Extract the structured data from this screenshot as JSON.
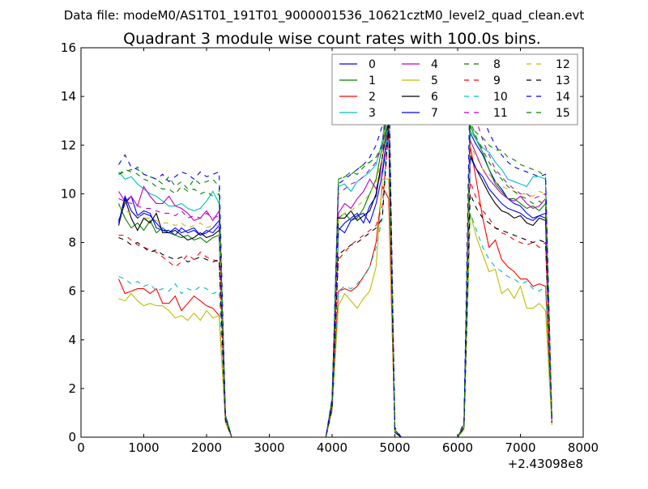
{
  "chart_data": {
    "type": "line",
    "suptitle": "Data file: modeM0/AS1T01_191T01_9000001536_10621cztM0_level2_quad_clean.evt",
    "title": "Quadrant 3 module wise count rates with 100.0s bins.",
    "xlabel": "",
    "ylabel": "",
    "xlim": [
      0,
      8000
    ],
    "ylim": [
      0,
      16
    ],
    "x_offset_label": "+2.43098e8",
    "xticks": [
      0,
      1000,
      2000,
      3000,
      4000,
      5000,
      6000,
      7000,
      8000
    ],
    "xtick_labels": [
      "0",
      "1000",
      "2000",
      "3000",
      "4000",
      "5000",
      "6000",
      "7000",
      "8000"
    ],
    "yticks": [
      0,
      2,
      4,
      6,
      8,
      10,
      12,
      14,
      16
    ],
    "ytick_labels": [
      "0",
      "2",
      "4",
      "6",
      "8",
      "10",
      "12",
      "14",
      "16"
    ],
    "legend_placement": "top-right",
    "x_start": 600,
    "x_step": 100,
    "series": [
      {
        "name": "0",
        "color": "#0000ff",
        "dash": false,
        "values": [
          8.9,
          9.6,
          9.9,
          9.1,
          9.3,
          9.2,
          8.6,
          8.5,
          8.5,
          8.3,
          8.6,
          8.4,
          8.5,
          8.3,
          8.4,
          8.6,
          8.9,
          0.9,
          0,
          0,
          0,
          0,
          0,
          0,
          0,
          0,
          0,
          0,
          0,
          0,
          0,
          0,
          0,
          0,
          1.5,
          8.5,
          8.8,
          9.0,
          9.2,
          8.8,
          9.5,
          9.9,
          11.5,
          14.5,
          0.3,
          0,
          0,
          0,
          0,
          0,
          0,
          0,
          0,
          0,
          0,
          0.5,
          12.5,
          12.0,
          11.6,
          11.0,
          10.5,
          10.2,
          9.8,
          9.6,
          9.5,
          9.2,
          9.0,
          9.1,
          9.2,
          0.8
        ]
      },
      {
        "name": "1",
        "color": "#008000",
        "dash": false,
        "values": [
          9.6,
          9.0,
          8.6,
          8.8,
          8.5,
          8.9,
          8.4,
          8.6,
          8.4,
          8.3,
          8.2,
          8.3,
          8.1,
          8.2,
          8.0,
          8.2,
          8.3,
          0.8,
          0,
          0,
          0,
          0,
          0,
          0,
          0,
          0,
          0,
          0,
          0,
          0,
          0,
          0,
          0,
          0,
          1.4,
          9.0,
          9.2,
          8.9,
          9.0,
          9.4,
          10.0,
          10.6,
          12.0,
          13.0,
          0.2,
          0,
          0,
          0,
          0,
          0,
          0,
          0,
          0,
          0,
          0,
          0.5,
          12.8,
          12.2,
          11.7,
          11.0,
          10.4,
          10.1,
          9.8,
          9.8,
          9.6,
          9.4,
          9.5,
          9.3,
          9.6,
          0.7
        ]
      },
      {
        "name": "2",
        "color": "#ff0000",
        "dash": false,
        "values": [
          6.5,
          5.9,
          6.0,
          6.1,
          6.1,
          5.9,
          6.1,
          5.5,
          5.5,
          5.8,
          5.2,
          5.5,
          5.8,
          5.6,
          5.4,
          5.3,
          5.0,
          0.7,
          0,
          0,
          0,
          0,
          0,
          0,
          0,
          0,
          0,
          0,
          0,
          0,
          0,
          0,
          0,
          0,
          1.2,
          6.0,
          6.1,
          6.0,
          6.2,
          6.6,
          7.0,
          8.0,
          10.3,
          9.8,
          0.3,
          0,
          0,
          0,
          0,
          0,
          0,
          0,
          0,
          0,
          0,
          0.4,
          12.0,
          10.5,
          9.0,
          7.8,
          8.1,
          7.3,
          7.0,
          6.8,
          6.5,
          6.5,
          6.2,
          6.3,
          6.2,
          0.8
        ]
      },
      {
        "name": "3",
        "color": "#00bfbf",
        "dash": false,
        "values": [
          10.9,
          10.6,
          10.7,
          10.4,
          10.2,
          10.0,
          9.9,
          9.7,
          9.5,
          9.5,
          9.6,
          9.4,
          9.3,
          9.4,
          9.7,
          10.1,
          9.6,
          0.9,
          0,
          0,
          0,
          0,
          0,
          0,
          0,
          0,
          0,
          0,
          0,
          0,
          0,
          0,
          0,
          0,
          1.6,
          10.3,
          10.4,
          10.1,
          10.5,
          10.7,
          10.9,
          11.2,
          12.2,
          14.0,
          0.3,
          0,
          0,
          0,
          0,
          0,
          0,
          0,
          0,
          0,
          0,
          0.5,
          12.6,
          12.2,
          11.9,
          11.7,
          11.3,
          11.0,
          10.6,
          10.5,
          10.4,
          10.3,
          10.7,
          10.7,
          10.6,
          0.6
        ]
      },
      {
        "name": "4",
        "color": "#bf00bf",
        "dash": false,
        "values": [
          10.1,
          9.7,
          9.9,
          9.5,
          10.3,
          9.9,
          9.6,
          9.6,
          9.9,
          9.5,
          9.4,
          9.2,
          8.9,
          9.0,
          9.3,
          8.9,
          9.3,
          0.8,
          0,
          0,
          0,
          0,
          0,
          0,
          0,
          0,
          0,
          0,
          0,
          0,
          0,
          0,
          0,
          0,
          1.5,
          9.2,
          9.6,
          9.4,
          9.8,
          10.1,
          10.6,
          10.2,
          11.0,
          12.8,
          0.2,
          0,
          0,
          0,
          0,
          0,
          0,
          0,
          0,
          0,
          0,
          0.4,
          12.2,
          11.6,
          11.0,
          10.6,
          10.3,
          10.0,
          9.8,
          9.7,
          9.9,
          9.6,
          9.4,
          9.5,
          9.8,
          0.7
        ]
      },
      {
        "name": "5",
        "color": "#bfbf00",
        "dash": false,
        "values": [
          5.7,
          5.6,
          5.9,
          5.6,
          5.4,
          5.5,
          5.4,
          5.4,
          5.2,
          4.9,
          5.0,
          4.8,
          5.1,
          4.8,
          5.2,
          4.9,
          5.0,
          0.6,
          0,
          0,
          0,
          0,
          0,
          0,
          0,
          0,
          0,
          0,
          0,
          0,
          0,
          0,
          0,
          0,
          1.1,
          5.4,
          5.9,
          5.6,
          5.3,
          5.7,
          6.0,
          7.0,
          10.6,
          10.6,
          0.2,
          0,
          0,
          0,
          0,
          0,
          0,
          0,
          0,
          0,
          0,
          0.3,
          9.2,
          8.2,
          7.5,
          6.8,
          6.9,
          5.9,
          6.1,
          5.7,
          6.2,
          5.3,
          5.3,
          5.5,
          5.2,
          0.5
        ]
      },
      {
        "name": "6",
        "color": "#000000",
        "dash": false,
        "values": [
          8.7,
          9.8,
          9.0,
          8.5,
          9.0,
          8.8,
          9.2,
          8.4,
          8.4,
          8.5,
          8.3,
          8.1,
          8.2,
          8.4,
          8.2,
          8.3,
          8.5,
          0.8,
          0,
          0,
          0,
          0,
          0,
          0,
          0,
          0,
          0,
          0,
          0,
          0,
          0,
          0,
          0,
          0,
          1.4,
          9.0,
          9.0,
          9.3,
          8.9,
          9.1,
          9.3,
          10.0,
          11.5,
          13.0,
          0.2,
          0,
          0,
          0,
          0,
          0,
          0,
          0,
          0,
          0,
          0,
          0.5,
          11.6,
          11.0,
          10.5,
          10.0,
          9.6,
          9.3,
          9.2,
          9.0,
          9.1,
          8.8,
          8.7,
          9.0,
          8.9,
          0.8
        ]
      },
      {
        "name": "7",
        "color": "#0000ff",
        "dash": false,
        "values": [
          8.8,
          9.9,
          9.3,
          9.0,
          9.2,
          9.1,
          8.8,
          8.5,
          8.4,
          8.6,
          8.4,
          8.5,
          8.6,
          8.3,
          8.5,
          8.4,
          8.7,
          0.8,
          0,
          0,
          0,
          0,
          0,
          0,
          0,
          0,
          0,
          0,
          0,
          0,
          0,
          0,
          0,
          0,
          1.3,
          8.6,
          8.4,
          8.9,
          9.1,
          9.2,
          8.8,
          9.6,
          10.8,
          12.6,
          0.2,
          0,
          0,
          0,
          0,
          0,
          0,
          0,
          0,
          0,
          0,
          0.4,
          11.5,
          11.0,
          10.7,
          10.2,
          9.9,
          9.6,
          9.4,
          9.3,
          9.2,
          9.0,
          8.9,
          9.1,
          9.0,
          0.7
        ]
      },
      {
        "name": "8",
        "color": "#008000",
        "dash": true,
        "values": [
          10.8,
          11.0,
          10.9,
          11.1,
          10.8,
          10.7,
          10.6,
          10.4,
          10.7,
          10.3,
          10.5,
          10.2,
          10.6,
          10.4,
          10.5,
          10.6,
          10.3,
          0.9,
          0,
          0,
          0,
          0,
          0,
          0,
          0,
          0,
          0,
          0,
          0,
          0,
          0,
          0,
          0,
          0,
          1.5,
          10.6,
          10.7,
          10.9,
          10.8,
          11.1,
          11.3,
          11.5,
          12.0,
          13.5,
          0.3,
          0,
          0,
          0,
          0,
          0,
          0,
          0,
          0,
          0,
          0,
          0.5,
          12.8,
          12.5,
          12.3,
          12.0,
          11.8,
          11.8,
          11.5,
          11.4,
          11.2,
          11.1,
          11.0,
          10.9,
          10.7,
          0.7
        ]
      },
      {
        "name": "9",
        "color": "#ff0000",
        "dash": true,
        "values": [
          8.3,
          8.3,
          8.1,
          7.9,
          7.8,
          7.7,
          7.6,
          7.4,
          7.2,
          7.0,
          7.2,
          7.5,
          7.3,
          7.6,
          7.4,
          7.3,
          7.2,
          0.7,
          0,
          0,
          0,
          0,
          0,
          0,
          0,
          0,
          0,
          0,
          0,
          0,
          0,
          0,
          0,
          0,
          1.2,
          7.3,
          7.6,
          7.9,
          8.1,
          8.3,
          8.5,
          8.7,
          9.5,
          12.5,
          0.2,
          0,
          0,
          0,
          0,
          0,
          0,
          0,
          0,
          0,
          0,
          0.4,
          10.5,
          9.8,
          9.3,
          9.0,
          8.6,
          8.4,
          8.3,
          8.1,
          8.0,
          7.9,
          8.0,
          7.8,
          8.0,
          0.6
        ]
      },
      {
        "name": "10",
        "color": "#00bfbf",
        "dash": true,
        "values": [
          6.6,
          6.5,
          6.3,
          6.4,
          6.2,
          6.3,
          6.0,
          6.1,
          6.0,
          6.3,
          5.9,
          6.1,
          6.0,
          6.2,
          6.1,
          5.9,
          6.0,
          0.7,
          0,
          0,
          0,
          0,
          0,
          0,
          0,
          0,
          0,
          0,
          0,
          0,
          0,
          0,
          0,
          0,
          1.1,
          6.0,
          6.2,
          6.1,
          6.3,
          6.6,
          7.0,
          7.8,
          9.0,
          13.8,
          0.2,
          0,
          0,
          0,
          0,
          0,
          0,
          0,
          0,
          0,
          0,
          0.4,
          9.2,
          8.5,
          7.8,
          7.3,
          7.0,
          6.8,
          6.6,
          6.5,
          6.3,
          6.4,
          6.1,
          6.0,
          6.2,
          0.6
        ]
      },
      {
        "name": "11",
        "color": "#bf00bf",
        "dash": true,
        "values": [
          9.8,
          9.7,
          9.6,
          9.5,
          9.4,
          9.4,
          9.3,
          9.2,
          9.2,
          9.1,
          9.3,
          9.0,
          9.1,
          9.0,
          9.2,
          9.0,
          9.1,
          0.8,
          0,
          0,
          0,
          0,
          0,
          0,
          0,
          0,
          0,
          0,
          0,
          0,
          0,
          0,
          0,
          0,
          1.5,
          10.0,
          10.2,
          10.4,
          10.5,
          10.7,
          11.0,
          11.3,
          12.0,
          15.0,
          0.3,
          0,
          0,
          0,
          0,
          0,
          0,
          0,
          0,
          0,
          0,
          0.5,
          14.0,
          13.0,
          12.2,
          11.6,
          11.0,
          10.7,
          10.4,
          10.2,
          10.0,
          10.0,
          9.8,
          9.9,
          10.0,
          0.7
        ]
      },
      {
        "name": "12",
        "color": "#bfbf00",
        "dash": true,
        "values": [
          9.5,
          9.3,
          9.2,
          9.1,
          9.0,
          9.0,
          8.9,
          8.8,
          8.8,
          8.7,
          8.8,
          8.6,
          8.7,
          8.8,
          8.6,
          8.7,
          8.7,
          0.8,
          0,
          0,
          0,
          0,
          0,
          0,
          0,
          0,
          0,
          0,
          0,
          0,
          0,
          0,
          0,
          0,
          1.4,
          9.0,
          9.2,
          9.3,
          9.5,
          9.7,
          10.0,
          10.5,
          11.5,
          14.2,
          0.2,
          0,
          0,
          0,
          0,
          0,
          0,
          0,
          0,
          0,
          0,
          0.5,
          12.0,
          11.5,
          11.0,
          10.8,
          10.5,
          10.3,
          10.2,
          10.1,
          10.0,
          10.0,
          9.9,
          10.1,
          10.0,
          0.6
        ]
      },
      {
        "name": "13",
        "color": "#000000",
        "dash": true,
        "values": [
          8.2,
          8.1,
          7.9,
          8.0,
          7.8,
          7.6,
          7.7,
          7.5,
          7.4,
          7.3,
          7.4,
          7.2,
          7.3,
          7.4,
          7.3,
          7.2,
          7.3,
          0.7,
          0,
          0,
          0,
          0,
          0,
          0,
          0,
          0,
          0,
          0,
          0,
          0,
          0,
          0,
          0,
          0,
          1.2,
          7.5,
          7.7,
          7.9,
          8.0,
          8.2,
          8.4,
          8.6,
          9.0,
          12.8,
          0.2,
          0,
          0,
          0,
          0,
          0,
          0,
          0,
          0,
          0,
          0,
          0.4,
          10.0,
          9.4,
          9.0,
          8.8,
          8.6,
          8.5,
          8.4,
          8.3,
          8.2,
          8.1,
          8.0,
          8.1,
          8.0,
          0.6
        ]
      },
      {
        "name": "14",
        "color": "#0000ff",
        "dash": true,
        "values": [
          11.2,
          11.6,
          11.1,
          11.0,
          10.8,
          10.7,
          10.6,
          10.8,
          10.5,
          10.7,
          10.9,
          10.8,
          10.6,
          10.9,
          10.7,
          10.8,
          10.9,
          0.9,
          0,
          0,
          0,
          0,
          0,
          0,
          0,
          0,
          0,
          0,
          0,
          0,
          0,
          0,
          0,
          0,
          1.6,
          10.4,
          10.6,
          10.8,
          11.0,
          11.2,
          11.5,
          12.0,
          12.8,
          15.5,
          0.4,
          0,
          0,
          0,
          0,
          0,
          0,
          0,
          0,
          0,
          0,
          0.6,
          15.0,
          14.0,
          13.2,
          12.5,
          12.0,
          11.6,
          11.3,
          11.1,
          11.0,
          10.9,
          10.8,
          10.7,
          10.8,
          0.8
        ]
      },
      {
        "name": "15",
        "color": "#008000",
        "dash": true,
        "values": [
          10.8,
          10.9,
          11.0,
          10.8,
          10.6,
          10.5,
          10.3,
          10.2,
          10.2,
          10.0,
          10.3,
          10.1,
          10.2,
          10.0,
          10.1,
          9.9,
          10.0,
          0.9,
          0,
          0,
          0,
          0,
          0,
          0,
          0,
          0,
          0,
          0,
          0,
          0,
          0,
          0,
          0,
          0,
          1.5,
          10.5,
          10.7,
          10.8,
          11.0,
          11.2,
          11.3,
          11.5,
          12.0,
          13.8,
          0.3,
          0,
          0,
          0,
          0,
          0,
          0,
          0,
          0,
          0,
          0,
          0.5,
          13.0,
          12.3,
          11.8,
          11.3,
          10.9,
          10.6,
          10.3,
          10.1,
          9.9,
          9.8,
          9.6,
          9.7,
          9.5,
          0.7
        ]
      }
    ]
  }
}
